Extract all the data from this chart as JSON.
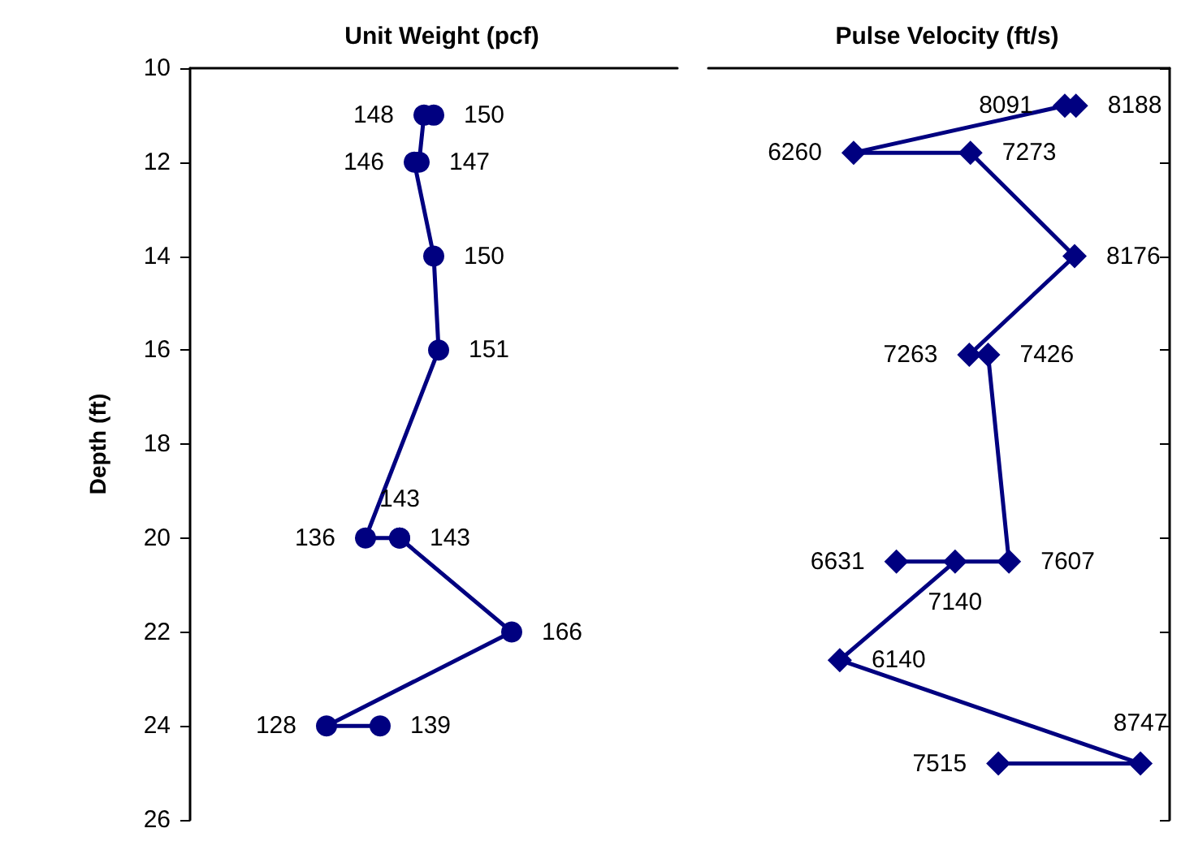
{
  "chart_data": [
    {
      "type": "line",
      "orientation": "horizontal",
      "title": "Unit Weight (pcf)",
      "ylabel": "Depth (ft)",
      "xlim": [
        100,
        200
      ],
      "ylim": [
        26,
        10
      ],
      "yticks": [
        10,
        12,
        14,
        16,
        18,
        20,
        22,
        24,
        26
      ],
      "tick_labels": "y",
      "marker": "circle",
      "line_style": "solid",
      "data_labels": true,
      "x": [
        11,
        11,
        12,
        12,
        14,
        16,
        20,
        20,
        20,
        22,
        24,
        24
      ],
      "series": [
        {
          "color": "#000080",
          "values": [
            150,
            148,
            147,
            146,
            150,
            151,
            136,
            143,
            143,
            166,
            128,
            139
          ]
        }
      ]
    },
    {
      "type": "line",
      "orientation": "horizontal",
      "title": "Pulse Velocity (ft/s)",
      "xlim": [
        5000,
        9000
      ],
      "ylim": [
        26,
        10
      ],
      "yticks": [
        10,
        12,
        14,
        16,
        18,
        20,
        22,
        24,
        26
      ],
      "tick_labels": false,
      "marker": "diamond",
      "line_style": "solid",
      "data_labels": true,
      "x": [
        10.8,
        10.8,
        11.8,
        11.8,
        14,
        16.1,
        16.1,
        20.5,
        20.5,
        20.5,
        22.6,
        24.8,
        24.8
      ],
      "series": [
        {
          "color": "#000080",
          "values": [
            8188,
            8091,
            6260,
            7273,
            8176,
            7263,
            7426,
            7607,
            6631,
            7140,
            6140,
            8747,
            7515
          ]
        }
      ]
    }
  ]
}
